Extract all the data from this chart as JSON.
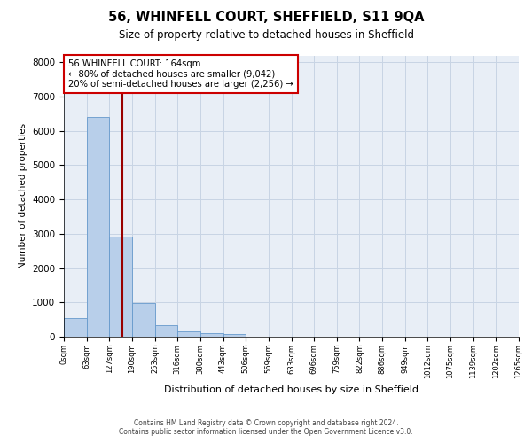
{
  "title1": "56, WHINFELL COURT, SHEFFIELD, S11 9QA",
  "title2": "Size of property relative to detached houses in Sheffield",
  "xlabel": "Distribution of detached houses by size in Sheffield",
  "ylabel": "Number of detached properties",
  "bar_values": [
    550,
    6400,
    2920,
    970,
    340,
    160,
    100,
    80,
    0,
    0,
    0,
    0,
    0,
    0,
    0,
    0,
    0,
    0,
    0,
    0
  ],
  "x_labels": [
    "0sqm",
    "63sqm",
    "127sqm",
    "190sqm",
    "253sqm",
    "316sqm",
    "380sqm",
    "443sqm",
    "506sqm",
    "569sqm",
    "633sqm",
    "696sqm",
    "759sqm",
    "822sqm",
    "886sqm",
    "949sqm",
    "1012sqm",
    "1075sqm",
    "1139sqm",
    "1202sqm",
    "1265sqm"
  ],
  "bar_color": "#b8cfea",
  "bar_edge_color": "#6699cc",
  "grid_color": "#c8d4e4",
  "bg_color": "#e8eef6",
  "vline_x_index": 2.83,
  "vline_color": "#990000",
  "annotation_text": "56 WHINFELL COURT: 164sqm\n← 80% of detached houses are smaller (9,042)\n20% of semi-detached houses are larger (2,256) →",
  "annotation_box_color": "#cc0000",
  "ylim": [
    0,
    8200
  ],
  "yticks": [
    0,
    1000,
    2000,
    3000,
    4000,
    5000,
    6000,
    7000,
    8000
  ],
  "footer_line1": "Contains HM Land Registry data © Crown copyright and database right 2024.",
  "footer_line2": "Contains public sector information licensed under the Open Government Licence v3.0."
}
